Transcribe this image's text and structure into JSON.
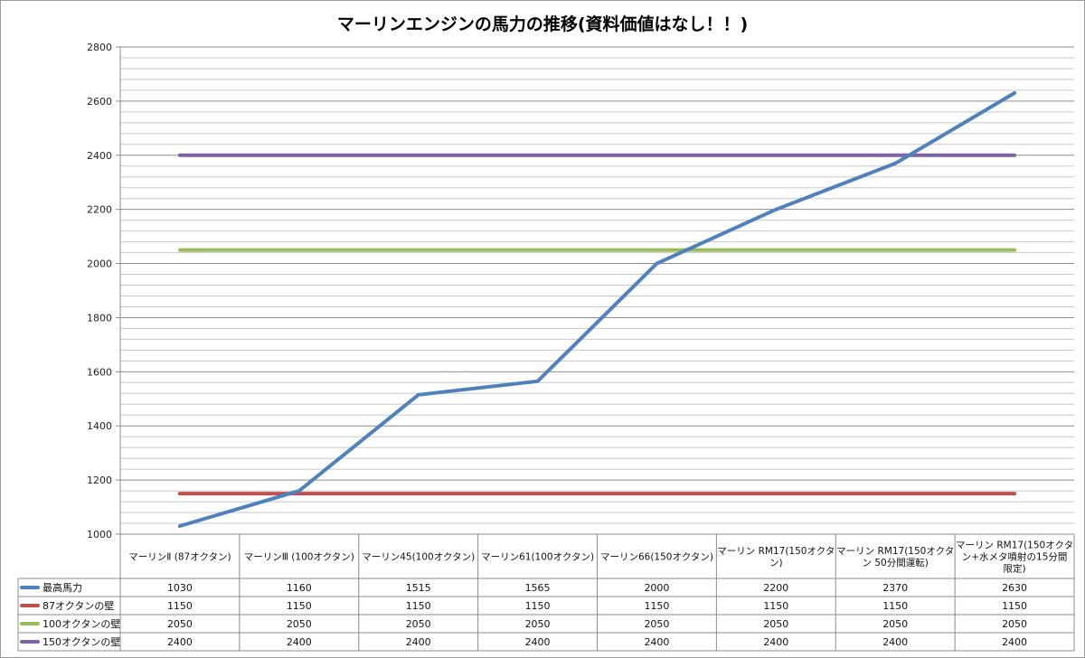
{
  "chart_data": {
    "type": "line",
    "title": "マーリンエンジンの馬力の推移(資料価値はなし！！)",
    "categories": [
      [
        "マーリンⅡ (87オクタン)"
      ],
      [
        "マーリンⅢ (100オクタン)"
      ],
      [
        "マーリン45(100オクタン)"
      ],
      [
        "マーリン61(100オクタン)"
      ],
      [
        "マーリン66(150オクタン)"
      ],
      [
        "マーリン RM17(150オクタ",
        "ン)"
      ],
      [
        "マーリン RM17(150オクタ",
        "ン 50分間運転)"
      ],
      [
        "マーリン RM17(150オクタ",
        "ン+水メタ噴射の15分間",
        "限定)"
      ]
    ],
    "ylim": [
      1000,
      2800
    ],
    "yticks": [
      1000,
      1200,
      1400,
      1600,
      1800,
      2000,
      2200,
      2400,
      2600,
      2800
    ],
    "ytick_labels": [
      "1000",
      "1200",
      "1400",
      "1600",
      "1800",
      "2000",
      "2200",
      "2400",
      "2600",
      "2800"
    ],
    "minor_gridline_step": 40,
    "grid": true,
    "legend_placement": "data-table-left",
    "series": [
      {
        "name": "最高馬力",
        "color": "#4f81bd",
        "values": [
          1030,
          1160,
          1515,
          1565,
          2000,
          2200,
          2370,
          2630
        ],
        "value_labels": [
          "1030",
          "1160",
          "1515",
          "1565",
          "2000",
          "2200",
          "2370",
          "2630"
        ]
      },
      {
        "name": "87オクタンの壁",
        "color": "#c0504d",
        "values": [
          1150,
          1150,
          1150,
          1150,
          1150,
          1150,
          1150,
          1150
        ],
        "value_labels": [
          "1150",
          "1150",
          "1150",
          "1150",
          "1150",
          "1150",
          "1150",
          "1150"
        ]
      },
      {
        "name": "100オクタンの壁",
        "color": "#9bbb59",
        "values": [
          2050,
          2050,
          2050,
          2050,
          2050,
          2050,
          2050,
          2050
        ],
        "value_labels": [
          "2050",
          "2050",
          "2050",
          "2050",
          "2050",
          "2050",
          "2050",
          "2050"
        ]
      },
      {
        "name": "150オクタンの壁",
        "color": "#8064a2",
        "values": [
          2400,
          2400,
          2400,
          2400,
          2400,
          2400,
          2400,
          2400
        ],
        "value_labels": [
          "2400",
          "2400",
          "2400",
          "2400",
          "2400",
          "2400",
          "2400",
          "2400"
        ]
      }
    ]
  }
}
